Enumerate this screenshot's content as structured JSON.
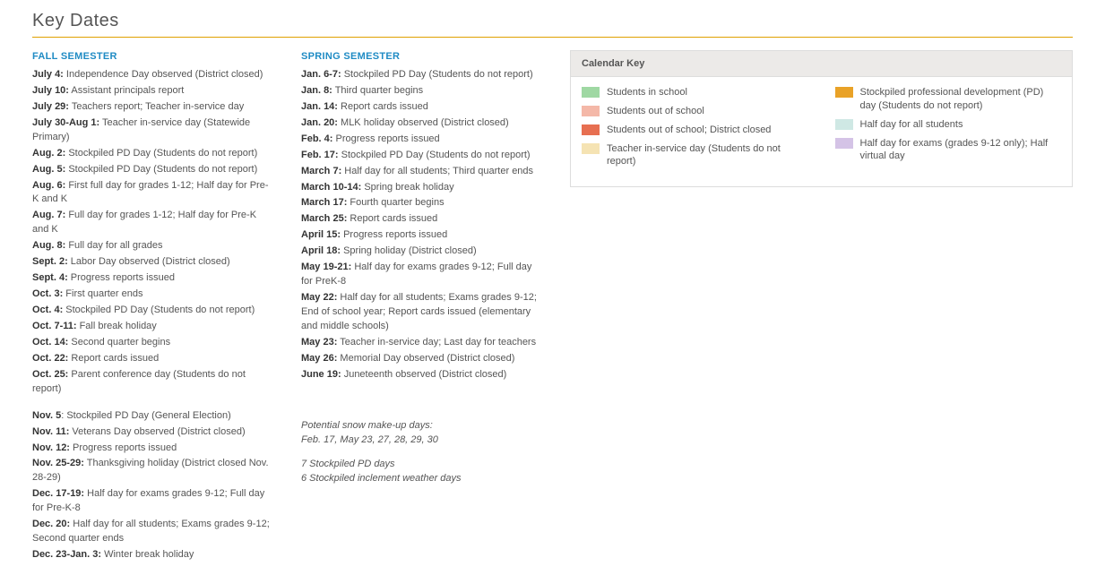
{
  "title": "Key Dates",
  "fall": {
    "header": "FALL SEMESTER",
    "items1": [
      {
        "d": "July 4:",
        "t": " Independence Day observed (District closed)"
      },
      {
        "d": "July 10:",
        "t": " Assistant principals report"
      },
      {
        "d": "July 29:",
        "t": " Teachers report; Teacher in-service day"
      },
      {
        "d": "July 30-Aug 1:",
        "t": " Teacher in-service day (Statewide Primary)"
      },
      {
        "d": "Aug. 2:",
        "t": " Stockpiled PD Day (Students do not report)"
      },
      {
        "d": "Aug. 5:",
        "t": " Stockpiled PD Day (Students do not report)"
      },
      {
        "d": "Aug. 6:",
        "t": " First full day for grades 1-12; Half day for Pre-K and K"
      },
      {
        "d": "Aug. 7:",
        "t": " Full day for grades 1-12; Half day for Pre-K and K"
      },
      {
        "d": "Aug. 8:",
        "t": " Full day for all grades"
      },
      {
        "d": "Sept. 2:",
        "t": " Labor Day observed (District closed)"
      },
      {
        "d": "Sept. 4:",
        "t": " Progress reports issued"
      },
      {
        "d": "Oct. 3:",
        "t": " First quarter ends"
      },
      {
        "d": "Oct. 4:",
        "t": " Stockpiled PD Day (Students do not report)"
      },
      {
        "d": "Oct. 7-11:",
        "t": " Fall break holiday"
      },
      {
        "d": "Oct. 14:",
        "t": " Second quarter begins"
      },
      {
        "d": "Oct. 22:",
        "t": " Report cards issued"
      },
      {
        "d": "Oct. 25:",
        "t": " Parent conference day (Students do not report)"
      }
    ],
    "items2": [
      {
        "d": "Nov. 5",
        "t": ": Stockpiled PD Day (General Election)"
      },
      {
        "d": "Nov. 11:",
        "t": " Veterans Day observed (District closed)"
      },
      {
        "d": "Nov. 12:",
        "t": " Progress reports issued"
      },
      {
        "d": "Nov. 25-29:",
        "t": " Thanksgiving holiday (District closed Nov. 28-29)"
      },
      {
        "d": "Dec. 17-19:",
        "t": " Half day for exams grades 9-12; Full day for Pre-K-8"
      },
      {
        "d": "Dec. 20:",
        "t": " Half day for all students; Exams grades 9-12; Second quarter ends"
      },
      {
        "d": "Dec. 23-Jan. 3:",
        "t": " Winter break holiday"
      }
    ]
  },
  "spring": {
    "header": "SPRING SEMESTER",
    "items": [
      {
        "d": "Jan. 6-7:",
        "t": " Stockpiled PD Day (Students do not report)"
      },
      {
        "d": "Jan. 8:",
        "t": " Third quarter begins"
      },
      {
        "d": "Jan. 14:",
        "t": " Report cards issued"
      },
      {
        "d": "Jan. 20:",
        "t": " MLK holiday observed (District closed)"
      },
      {
        "d": "Feb. 4:",
        "t": " Progress reports issued"
      },
      {
        "d": "Feb. 17:",
        "t": " Stockpiled PD Day (Students do not report)"
      },
      {
        "d": "March 7:",
        "t": " Half day for all students; Third quarter ends"
      },
      {
        "d": "March 10-14:",
        "t": " Spring break holiday"
      },
      {
        "d": "March 17:",
        "t": " Fourth quarter begins"
      },
      {
        "d": "March 25:",
        "t": " Report cards issued"
      },
      {
        "d": "April 15:",
        "t": " Progress reports issued"
      },
      {
        "d": "April 18:",
        "t": " Spring holiday (District closed)"
      },
      {
        "d": "May 19-21:",
        "t": " Half day for exams grades 9-12; Full day for PreK-8"
      },
      {
        "d": "May 22:",
        "t": " Half day for all students; Exams grades 9-12; End of school year; Report cards issued (elementary and middle schools)"
      },
      {
        "d": "May 23:",
        "t": " Teacher in-service day; Last day for teachers"
      },
      {
        "d": "May 26:",
        "t": " Memorial Day observed (District closed)"
      },
      {
        "d": "June 19:",
        "t": " Juneteenth observed (District closed)"
      }
    ]
  },
  "footnotes": {
    "line1": "Potential snow make-up days:",
    "line2": "Feb. 17, May 23, 27, 28, 29, 30",
    "line3": "7 Stockpiled PD days",
    "line4": "6 Stockpiled inclement weather days"
  },
  "key": {
    "header": "Calendar Key",
    "left": [
      {
        "color": "#9fd8a3",
        "label": "Students in school"
      },
      {
        "color": "#f4b8a8",
        "label": "Students out of school"
      },
      {
        "color": "#e76f51",
        "label": "Students out of school; District closed"
      },
      {
        "color": "#f5e3b3",
        "label": "Teacher in-service day (Students do not report)"
      }
    ],
    "right": [
      {
        "color": "#e9a227",
        "label": "Stockpiled professional development (PD) day (Students do not report)"
      },
      {
        "color": "#cfe8e4",
        "label": "Half day for all students"
      },
      {
        "color": "#d4c3e6",
        "label": "Half day for exams (grades 9-12 only); Half virtual day"
      }
    ]
  }
}
